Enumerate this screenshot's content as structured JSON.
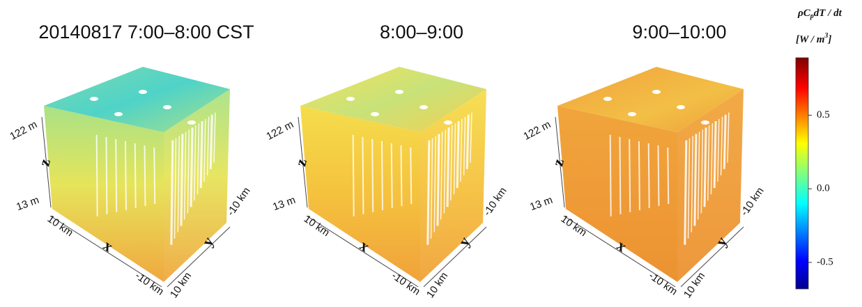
{
  "chart_data": {
    "type": "volume",
    "panels": [
      {
        "title": "20140817 7:00–8:00 CST",
        "z_top": "122 m",
        "z_label": "z",
        "z_bottom": "13 m",
        "x_start": "10 km",
        "x_label": "x",
        "x_end": "-10 km",
        "y_start": "10 km",
        "y_label": "y",
        "y_end": "-10 km"
      },
      {
        "title": "8:00–9:00",
        "z_top": "122 m",
        "z_label": "z",
        "z_bottom": "13 m",
        "x_start": "10 km",
        "x_label": "x",
        "x_end": "-10 km",
        "y_start": "10 km",
        "y_label": "y",
        "y_end": "-10 km"
      },
      {
        "title": "9:00–10:00",
        "z_top": "122 m",
        "z_label": "z",
        "z_bottom": "13 m",
        "x_start": "10 km",
        "x_label": "x",
        "x_end": "-10 km",
        "y_start": "10 km",
        "y_label": "y",
        "y_end": "-10 km"
      }
    ],
    "colorbar": {
      "title_parts": [
        "ρC",
        "p",
        "dT / dt"
      ],
      "unit_parts": [
        "[W / m",
        "3",
        "]"
      ],
      "ylim": [
        -0.68,
        0.89
      ],
      "yticks": [
        -0.5,
        {
          "value": 0,
          "label": "0.0"
        },
        0.5
      ],
      "colormap": "jet"
    }
  }
}
